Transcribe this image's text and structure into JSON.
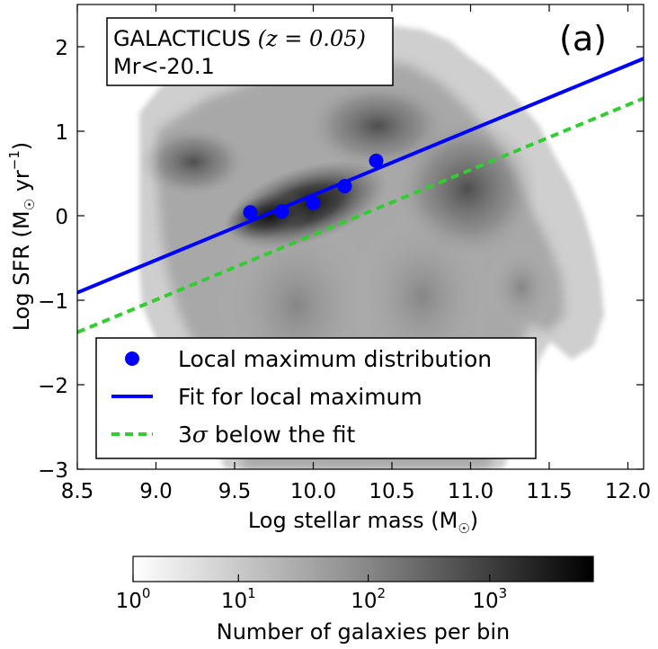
{
  "chart_data": {
    "type": "scatter",
    "xlabel": "Log stellar mass (M",
    "xlabel_sub": "☉",
    "xlabel_end": ")",
    "ylabel": "Log SFR (M",
    "ylabel_sub": "☉",
    "ylabel_unit": " yr",
    "ylabel_sup": "−1",
    "ylabel_end": ")",
    "xlim": [
      8.5,
      12.1
    ],
    "ylim": [
      -3,
      2.5
    ],
    "xticks": [
      {
        "v": 8.5,
        "label": "8.5"
      },
      {
        "v": 9.0,
        "label": "9.0"
      },
      {
        "v": 9.5,
        "label": "9.5"
      },
      {
        "v": 10.0,
        "label": "10.0"
      },
      {
        "v": 10.5,
        "label": "10.5"
      },
      {
        "v": 11.0,
        "label": "11.0"
      },
      {
        "v": 11.5,
        "label": "11.5"
      },
      {
        "v": 12.0,
        "label": "12.0"
      }
    ],
    "yticks": [
      {
        "v": -3,
        "label": "−3"
      },
      {
        "v": -2,
        "label": "−2"
      },
      {
        "v": -1,
        "label": "−1"
      },
      {
        "v": 0,
        "label": "0"
      },
      {
        "v": 1,
        "label": "1"
      },
      {
        "v": 2,
        "label": "2"
      }
    ],
    "series": [
      {
        "name": "Local maximum distribution",
        "kind": "points",
        "color": "#0000ff",
        "x": [
          9.6,
          9.8,
          10.0,
          10.2,
          10.4
        ],
        "y": [
          0.04,
          0.05,
          0.15,
          0.35,
          0.65
        ]
      },
      {
        "name": "Fit for local maximum",
        "kind": "line",
        "color": "#0000ff",
        "x": [
          8.5,
          12.1
        ],
        "y": [
          -0.91,
          1.86
        ]
      },
      {
        "name": "3σ below the fit",
        "kind": "dashed",
        "color": "#33cc33",
        "x": [
          8.5,
          12.1
        ],
        "y": [
          -1.38,
          1.39
        ]
      }
    ],
    "legend": [
      {
        "label": "Local maximum distribution",
        "marker": "dot"
      },
      {
        "label": "Fit for local maximum",
        "marker": "line"
      },
      {
        "label_main": "3",
        "label_sigma": "σ",
        "label_rest": " below the fit",
        "marker": "dashed"
      }
    ],
    "annotation": {
      "line1_main": "GALACTICUS ",
      "line1_math": "(z = 0.05)",
      "line2": "Mr<-20.1"
    },
    "panel_label": "(a)",
    "colorbar": {
      "label": "Number of galaxies per bin",
      "ticks": [
        {
          "base": "10",
          "exp": "0",
          "pos": 0.0
        },
        {
          "base": "10",
          "exp": "1",
          "pos": 0.229
        },
        {
          "base": "10",
          "exp": "2",
          "pos": 0.511
        },
        {
          "base": "10",
          "exp": "3",
          "pos": 0.775
        }
      ]
    }
  }
}
